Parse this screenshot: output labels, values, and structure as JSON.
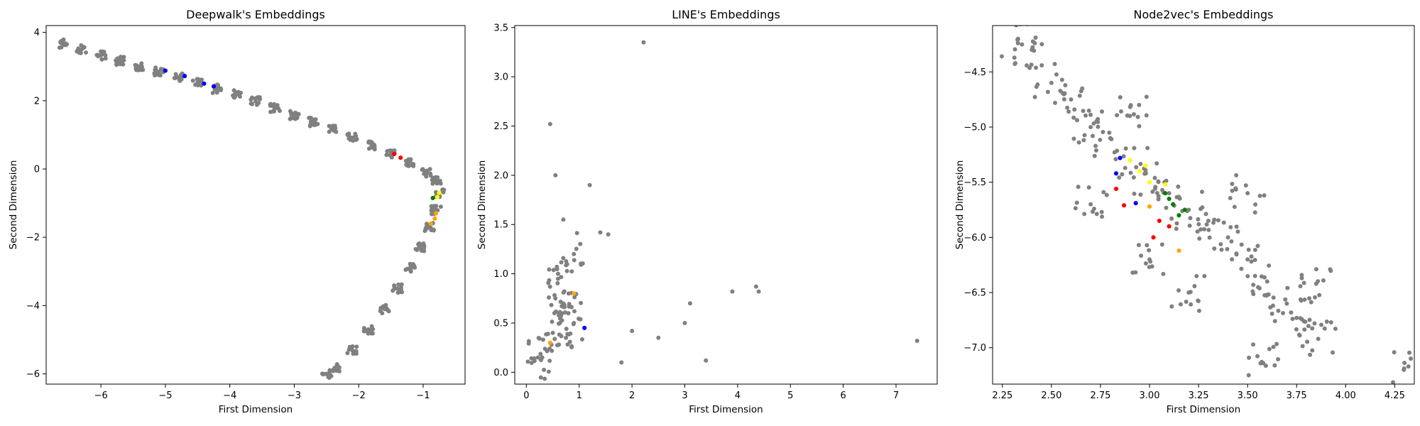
{
  "chart_data": [
    {
      "type": "scatter",
      "title": "Deepwalk's Embeddings",
      "xlabel": "First Dimension",
      "ylabel": "Second Dimension",
      "xlim": [
        -6.85,
        -0.35
      ],
      "ylim": [
        -6.3,
        4.2
      ],
      "xticks": [
        -6,
        -5,
        -4,
        -3,
        -2,
        -1
      ],
      "yticks": [
        -6,
        -4,
        -2,
        0,
        2,
        4
      ],
      "grid": false,
      "series_colors": {
        "background": "#808080",
        "blue": "#0000ff",
        "red": "#ff0000",
        "green": "#008000",
        "yellow": "#ffff00",
        "orange": "#ffa500"
      },
      "series": [
        {
          "color": "#808080",
          "points": [
            [
              -6.6,
              3.67
            ],
            [
              -6.3,
              3.5
            ],
            [
              -6.0,
              3.33
            ],
            [
              -5.7,
              3.17
            ],
            [
              -5.4,
              3.0
            ],
            [
              -5.1,
              2.85
            ],
            [
              -4.8,
              2.68
            ],
            [
              -4.5,
              2.52
            ],
            [
              -4.2,
              2.35
            ],
            [
              -3.9,
              2.18
            ],
            [
              -3.6,
              1.98
            ],
            [
              -3.3,
              1.78
            ],
            [
              -3.0,
              1.58
            ],
            [
              -2.7,
              1.38
            ],
            [
              -2.4,
              1.15
            ],
            [
              -2.1,
              0.92
            ],
            [
              -1.8,
              0.68
            ],
            [
              -1.5,
              0.42
            ],
            [
              -1.2,
              0.18
            ],
            [
              -0.95,
              -0.1
            ],
            [
              -0.8,
              -0.35
            ],
            [
              -0.75,
              -0.7
            ],
            [
              -0.8,
              -1.2
            ],
            [
              -0.9,
              -1.7
            ],
            [
              -1.05,
              -2.3
            ],
            [
              -1.2,
              -2.9
            ],
            [
              -1.4,
              -3.5
            ],
            [
              -1.6,
              -4.1
            ],
            [
              -1.85,
              -4.7
            ],
            [
              -2.1,
              -5.3
            ],
            [
              -2.35,
              -5.8
            ],
            [
              -2.5,
              -6.0
            ]
          ]
        },
        {
          "color": "#0000ff",
          "points": [
            [
              -5.0,
              2.88
            ],
            [
              -4.7,
              2.72
            ],
            [
              -4.4,
              2.5
            ],
            [
              -4.25,
              2.42
            ]
          ]
        },
        {
          "color": "#ff0000",
          "points": [
            [
              -1.45,
              0.44
            ],
            [
              -1.35,
              0.33
            ]
          ]
        },
        {
          "color": "#008000",
          "points": [
            [
              -0.85,
              -0.85
            ]
          ]
        },
        {
          "color": "#ffff00",
          "points": [
            [
              -0.75,
              -0.7
            ],
            [
              -0.78,
              -0.82
            ]
          ]
        },
        {
          "color": "#ffa500",
          "points": [
            [
              -0.8,
              -1.3
            ],
            [
              -0.88,
              -1.6
            ],
            [
              -0.82,
              -1.45
            ]
          ]
        }
      ]
    },
    {
      "type": "scatter",
      "title": "LINE's Embeddings",
      "xlabel": "First Dimension",
      "ylabel": "Second Dimension",
      "xlim": [
        -0.22,
        7.78
      ],
      "ylim": [
        -0.12,
        3.52
      ],
      "xticks": [
        0,
        1,
        2,
        3,
        4,
        5,
        6,
        7
      ],
      "yticks": [
        0.0,
        0.5,
        1.0,
        1.5,
        2.0,
        2.5,
        3.0,
        3.5
      ],
      "grid": false,
      "series_colors": {
        "background": "#808080",
        "blue": "#0000ff",
        "orange": "#ffa500"
      },
      "series": [
        {
          "color": "#808080",
          "points": [
            [
              0.65,
              0.6
            ],
            [
              0.5,
              0.4
            ],
            [
              0.8,
              0.8
            ],
            [
              0.6,
              1.0
            ],
            [
              0.75,
              0.35
            ],
            [
              0.55,
              0.75
            ],
            [
              0.9,
              0.5
            ],
            [
              0.45,
              2.52
            ],
            [
              0.55,
              2.0
            ],
            [
              2.22,
              3.35
            ],
            [
              1.2,
              1.9
            ],
            [
              0.7,
              1.55
            ],
            [
              0.9,
              1.2
            ],
            [
              1.4,
              1.42
            ],
            [
              1.55,
              1.4
            ],
            [
              2.0,
              0.42
            ],
            [
              2.5,
              0.35
            ],
            [
              3.0,
              0.5
            ],
            [
              3.1,
              0.7
            ],
            [
              3.4,
              0.12
            ],
            [
              3.9,
              0.82
            ],
            [
              4.35,
              0.87
            ],
            [
              4.4,
              0.82
            ],
            [
              7.4,
              0.32
            ],
            [
              1.8,
              0.1
            ],
            [
              0.15,
              0.14
            ],
            [
              0.3,
              0.15
            ]
          ]
        },
        {
          "color": "#0000ff",
          "points": [
            [
              1.1,
              0.45
            ]
          ]
        },
        {
          "color": "#ffa500",
          "points": [
            [
              0.45,
              0.3
            ],
            [
              0.9,
              0.8
            ]
          ]
        }
      ]
    },
    {
      "type": "scatter",
      "title": "Node2vec's Embeddings",
      "xlabel": "First Dimension",
      "ylabel": "Second Dimension",
      "xlim": [
        2.2,
        4.35
      ],
      "ylim": [
        -7.33,
        -4.08
      ],
      "xticks": [
        2.25,
        2.5,
        2.75,
        3.0,
        3.25,
        3.5,
        3.75,
        4.0,
        4.25
      ],
      "yticks": [
        -4.5,
        -5.0,
        -5.5,
        -6.0,
        -6.5,
        -7.0
      ],
      "xtick_labels": [
        "2.25",
        "2.50",
        "2.75",
        "3.00",
        "3.25",
        "3.50",
        "3.75",
        "4.00",
        "4.25"
      ],
      "ytick_labels": [
        "−4.5",
        "−5.0",
        "−5.5",
        "−6.0",
        "−6.5",
        "−7.0"
      ],
      "grid": false,
      "series_colors": {
        "background": "#808080",
        "blue": "#0000ff",
        "red": "#ff0000",
        "green": "#008000",
        "yellow": "#ffff00",
        "orange": "#ffa500"
      },
      "series": [
        {
          "color": "#808080",
          "points": [
            [
              2.33,
              -4.2
            ],
            [
              2.4,
              -4.3
            ],
            [
              2.5,
              -4.6
            ],
            [
              2.6,
              -4.75
            ],
            [
              2.7,
              -5.0
            ],
            [
              2.8,
              -5.1
            ],
            [
              2.9,
              -5.3
            ],
            [
              3.0,
              -5.5
            ],
            [
              3.1,
              -5.6
            ],
            [
              3.2,
              -5.75
            ],
            [
              3.3,
              -5.85
            ],
            [
              3.4,
              -6.0
            ],
            [
              3.5,
              -6.2
            ],
            [
              3.6,
              -6.4
            ],
            [
              3.7,
              -6.6
            ],
            [
              3.75,
              -6.73
            ],
            [
              3.85,
              -6.42
            ],
            [
              3.86,
              -6.92
            ],
            [
              3.58,
              -7.14
            ],
            [
              4.32,
              -7.17
            ],
            [
              2.7,
              -5.7
            ],
            [
              3.0,
              -6.2
            ],
            [
              3.2,
              -6.5
            ],
            [
              3.5,
              -5.6
            ],
            [
              2.9,
              -4.9
            ]
          ]
        },
        {
          "color": "#0000ff",
          "points": [
            [
              2.85,
              -5.28
            ],
            [
              2.83,
              -5.42
            ],
            [
              2.93,
              -5.69
            ]
          ]
        },
        {
          "color": "#ff0000",
          "points": [
            [
              2.83,
              -5.56
            ],
            [
              2.87,
              -5.71
            ],
            [
              3.05,
              -5.85
            ],
            [
              3.02,
              -6.0
            ],
            [
              3.1,
              -5.9
            ]
          ]
        },
        {
          "color": "#008000",
          "points": [
            [
              3.08,
              -5.6
            ],
            [
              3.12,
              -5.7
            ],
            [
              3.15,
              -5.8
            ],
            [
              3.18,
              -5.75
            ],
            [
              3.1,
              -5.65
            ]
          ]
        },
        {
          "color": "#ffff00",
          "points": [
            [
              2.9,
              -5.3
            ],
            [
              2.95,
              -5.4
            ],
            [
              3.0,
              -5.5
            ],
            [
              3.08,
              -5.52
            ],
            [
              2.98,
              -5.35
            ]
          ]
        },
        {
          "color": "#ffa500",
          "points": [
            [
              3.0,
              -5.72
            ],
            [
              3.15,
              -6.12
            ]
          ]
        }
      ]
    }
  ]
}
